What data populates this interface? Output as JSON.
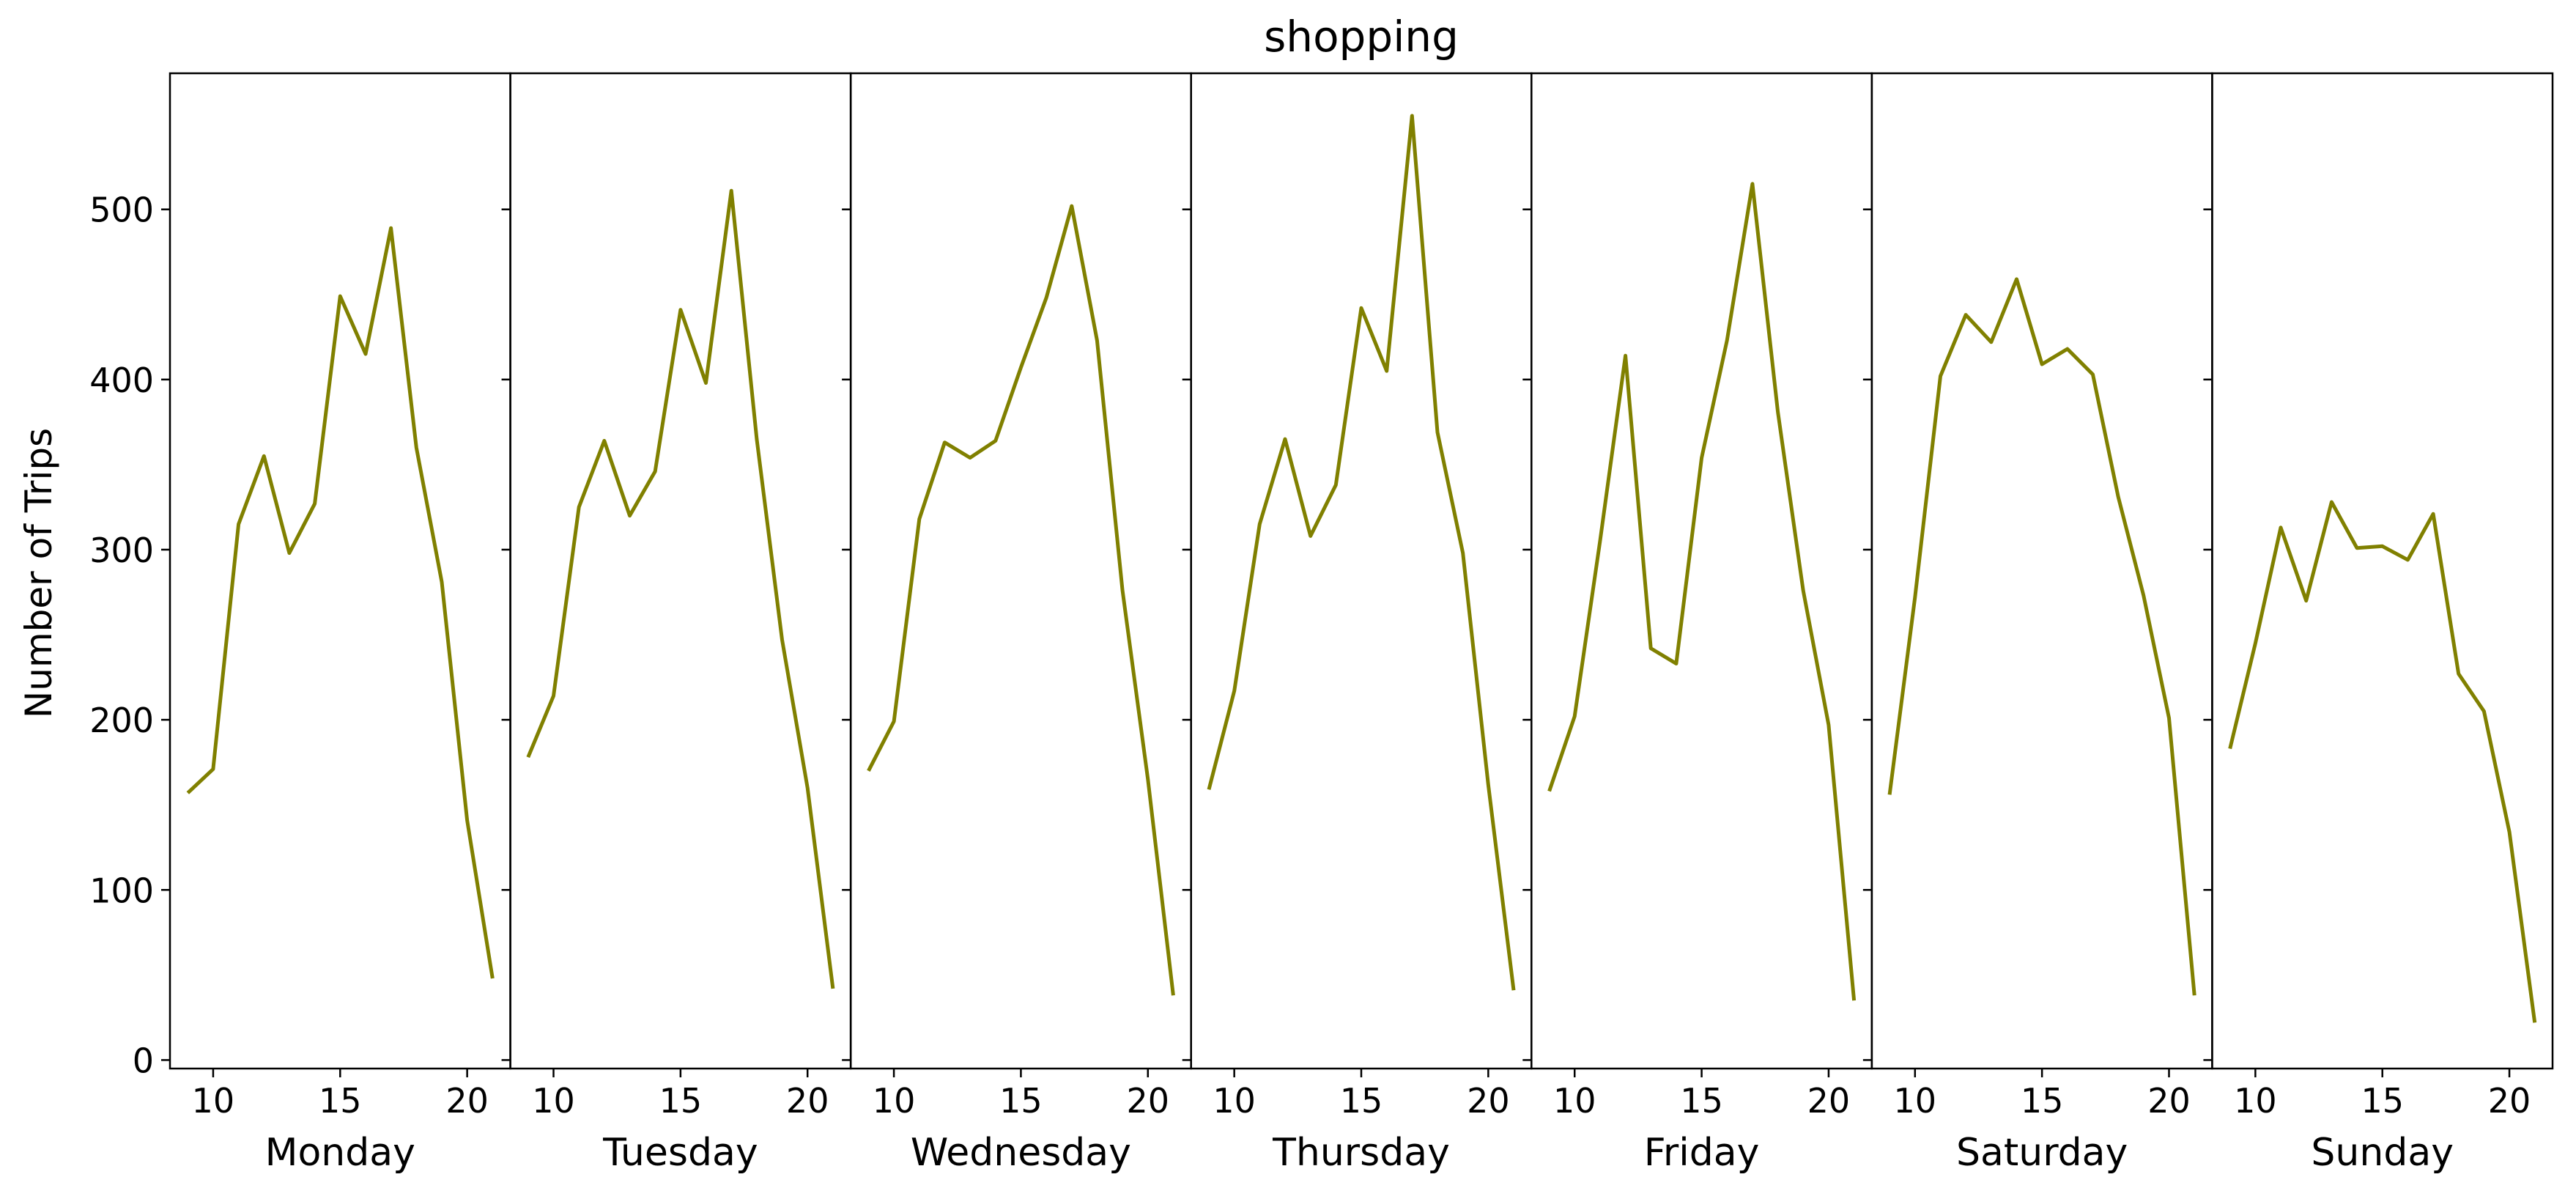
{
  "chart_data": {
    "type": "line",
    "title": "shopping",
    "ylabel": "Number of Trips",
    "ylim": [
      -5,
      580
    ],
    "xlim": [
      8.3,
      21.7
    ],
    "x_ticks": [
      10,
      15,
      20
    ],
    "y_ticks": [
      0,
      100,
      200,
      300,
      400,
      500
    ],
    "x": [
      9,
      10,
      11,
      12,
      13,
      14,
      15,
      16,
      17,
      18,
      19,
      20,
      21
    ],
    "line_color": "#808000",
    "grid": false,
    "panels": [
      {
        "name": "Monday",
        "values": [
          157,
          171,
          315,
          355,
          298,
          327,
          449,
          415,
          489,
          360,
          281,
          141,
          48
        ]
      },
      {
        "name": "Tuesday",
        "values": [
          178,
          214,
          325,
          364,
          320,
          346,
          441,
          398,
          511,
          365,
          247,
          160,
          42
        ]
      },
      {
        "name": "Wednesday",
        "values": [
          170,
          199,
          318,
          363,
          354,
          364,
          407,
          448,
          502,
          423,
          276,
          165,
          38
        ]
      },
      {
        "name": "Thursday",
        "values": [
          159,
          217,
          315,
          365,
          308,
          338,
          442,
          405,
          555,
          369,
          298,
          162,
          41
        ]
      },
      {
        "name": "Friday",
        "values": [
          158,
          202,
          305,
          414,
          242,
          233,
          354,
          423,
          515,
          381,
          276,
          197,
          35
        ]
      },
      {
        "name": "Saturday",
        "values": [
          156,
          272,
          402,
          438,
          422,
          459,
          409,
          418,
          403,
          331,
          273,
          201,
          38
        ]
      },
      {
        "name": "Sunday",
        "values": [
          183,
          245,
          313,
          270,
          328,
          301,
          302,
          294,
          321,
          227,
          205,
          134,
          22
        ]
      }
    ]
  }
}
